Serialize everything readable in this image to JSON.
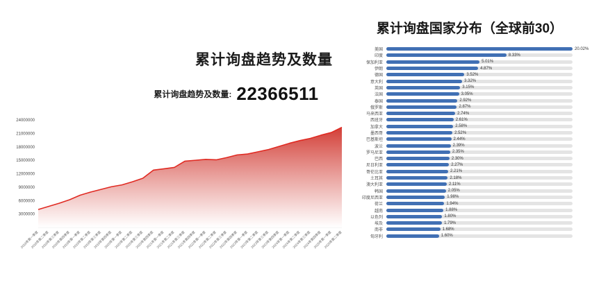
{
  "page": {
    "background": "#ffffff"
  },
  "left": {
    "title": "累计询盘趋势及数量",
    "stat_label": "累计询盘趋势及数量:",
    "stat_value": "22366511"
  },
  "right": {
    "title": "累计询盘国家分布（全球前30）"
  },
  "chart_data": [
    {
      "type": "area",
      "title": "累计询盘趋势及数量",
      "ylim": [
        0,
        24000000
      ],
      "yticks": [
        3000000,
        6000000,
        9000000,
        12000000,
        15000000,
        18000000,
        21000000,
        24000000
      ],
      "line_color": "#e02a22",
      "fill_top_color": "#d0342c",
      "fill_bottom_color": "#ffffff",
      "grid": false,
      "x": [
        "2018年第一季度",
        "2018年第二季度",
        "2018年第三季度",
        "2018年第四季度",
        "2019年第一季度",
        "2019年第二季度",
        "2019年第三季度",
        "2019年第四季度",
        "2020年第一季度",
        "2020年第二季度",
        "2020年第三季度",
        "2020年第四季度",
        "2021年第一季度",
        "2021年第二季度",
        "2021年第三季度",
        "2021年第四季度",
        "2022年第一季度",
        "2022年第二季度",
        "2022年第三季度",
        "2022年第四季度",
        "2023年第一季度",
        "2023年第二季度",
        "2023年第三季度",
        "2023年第四季度",
        "2024年第一季度",
        "2024年第二季度",
        "2024年第三季度",
        "2024年第四季度",
        "2025年第一季度",
        "2025年第二季度"
      ],
      "values": [
        4000000,
        4700000,
        5400000,
        6200000,
        7200000,
        7900000,
        8500000,
        9100000,
        9500000,
        10200000,
        11000000,
        12800000,
        13100000,
        13400000,
        14800000,
        15000000,
        15200000,
        15100000,
        15600000,
        16200000,
        16400000,
        16900000,
        17400000,
        18100000,
        18800000,
        19400000,
        19900000,
        20600000,
        21200000,
        22366511
      ]
    },
    {
      "type": "bar",
      "orientation": "horizontal",
      "title": "累计询盘国家分布（全球前30）",
      "unit": "%",
      "bar_color": "#4170b4",
      "track_color": "#e4e4e4",
      "legend_position": "none",
      "categories": [
        "美国",
        "印度",
        "保加利亚",
        "伊朗",
        "德国",
        "意大利",
        "英国",
        "法国",
        "泰国",
        "俄罗斯",
        "马来西亚",
        "西班牙",
        "加拿大",
        "墨西哥",
        "巴基斯坦",
        "波兰",
        "罗马尼亚",
        "巴西",
        "尼日利亚",
        "哥伦比亚",
        "土耳其",
        "澳大利亚",
        "韩国",
        "印度尼西亚",
        "荷兰",
        "越南",
        "以色列",
        "埃及",
        "南非",
        "匈牙利"
      ],
      "values": [
        20.02,
        8.33,
        5.01,
        4.87,
        3.52,
        3.32,
        3.15,
        3.05,
        2.92,
        2.87,
        2.74,
        2.61,
        2.58,
        2.52,
        2.44,
        2.39,
        2.35,
        2.3,
        2.27,
        2.21,
        2.18,
        2.11,
        2.05,
        1.98,
        1.94,
        1.88,
        1.8,
        1.79,
        1.68,
        1.6
      ]
    }
  ]
}
